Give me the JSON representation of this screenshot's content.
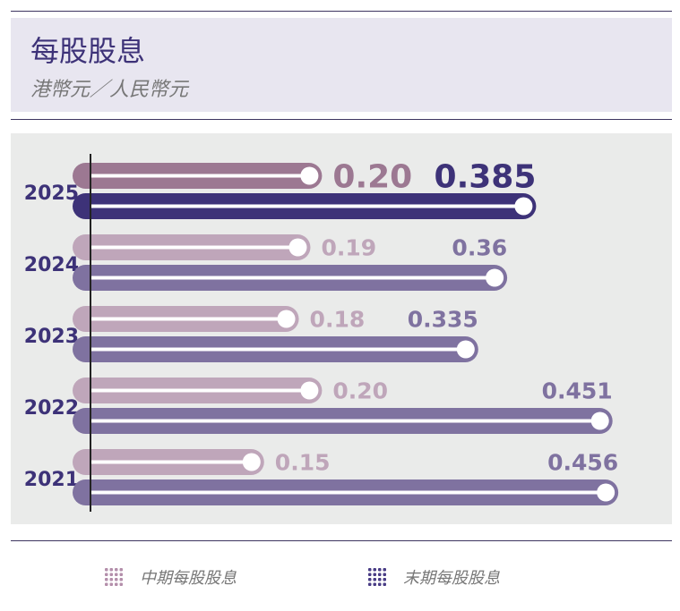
{
  "header": {
    "title": "每股股息",
    "subtitle": "港幣元／人民幣元"
  },
  "legend": [
    {
      "label": "中期每股股息",
      "color": "#bfa6ba"
    },
    {
      "label": "末期每股股息",
      "color": "#3d3278"
    }
  ],
  "chart_data": {
    "type": "bar",
    "orientation": "horizontal",
    "categories": [
      "2025",
      "2024",
      "2023",
      "2022",
      "2021"
    ],
    "series": [
      {
        "name": "中期每股股息",
        "values": [
          0.2,
          0.19,
          0.18,
          0.2,
          0.15
        ],
        "labels": [
          "0.20",
          "0.19",
          "0.18",
          "0.20",
          "0.15"
        ]
      },
      {
        "name": "末期每股股息",
        "values": [
          0.385,
          0.36,
          0.335,
          0.451,
          0.456
        ],
        "labels": [
          "0.385",
          "0.36",
          "0.335",
          "0.451",
          "0.456"
        ]
      }
    ],
    "colors": {
      "interim_highlight": "#9c7892",
      "final_highlight": "#3d3278",
      "interim": "#bfa6ba",
      "final": "#7f72a0",
      "year_label": "#3d3278"
    }
  }
}
